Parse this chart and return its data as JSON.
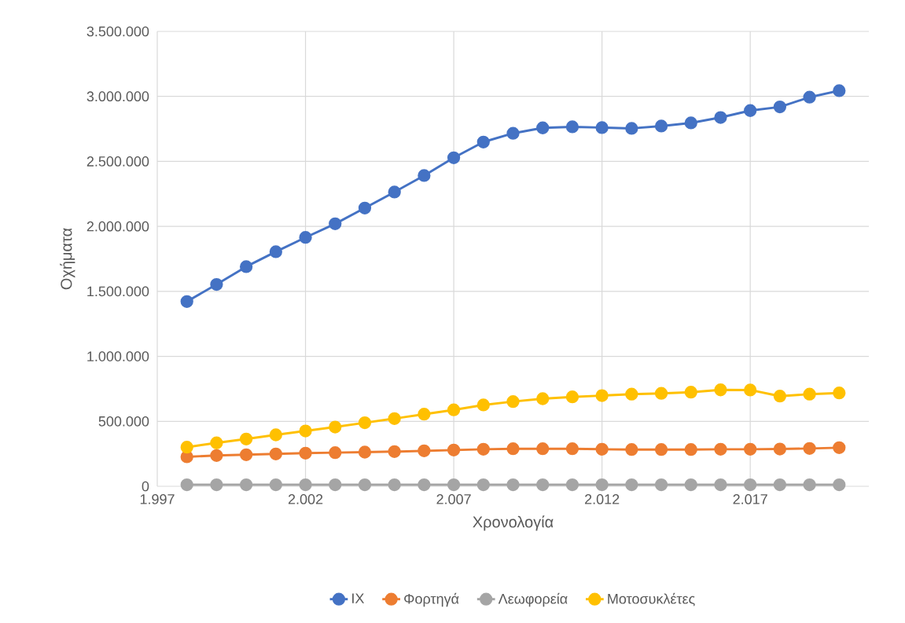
{
  "chart_data": {
    "type": "line",
    "xlabel": "Χρονολογία",
    "ylabel": "Οχήματα",
    "x": [
      1998,
      1999,
      2000,
      2001,
      2002,
      2003,
      2004,
      2005,
      2006,
      2007,
      2008,
      2009,
      2010,
      2011,
      2012,
      2013,
      2014,
      2015,
      2016,
      2017,
      2018,
      2019,
      2020
    ],
    "series": [
      {
        "name": "IX",
        "color": "#4472c4",
        "values": [
          1422000,
          1553000,
          1690000,
          1805000,
          1915000,
          2020000,
          2141000,
          2264000,
          2391000,
          2528000,
          2649000,
          2716000,
          2758000,
          2766000,
          2760000,
          2754000,
          2772000,
          2796000,
          2838000,
          2891000,
          2919000,
          2994000,
          3044000
        ]
      },
      {
        "name": "Φορτηγά",
        "color": "#ed7d31",
        "values": [
          227000,
          237000,
          243000,
          249000,
          255000,
          259000,
          263000,
          267000,
          273000,
          279000,
          285000,
          289000,
          289000,
          289000,
          285000,
          283000,
          283000,
          283000,
          285000,
          285000,
          287000,
          291000,
          297000
        ]
      },
      {
        "name": "Λεωφορεία",
        "color": "#a5a5a5",
        "values": [
          12000,
          12000,
          12000,
          12000,
          12000,
          12000,
          12000,
          12000,
          12000,
          12000,
          12000,
          12000,
          12000,
          12000,
          12000,
          12000,
          12000,
          12000,
          12000,
          12000,
          12000,
          12000,
          12000
        ]
      },
      {
        "name": "Μοτοσυκλέτες",
        "color": "#ffc000",
        "values": [
          301000,
          334000,
          364000,
          396000,
          426000,
          456000,
          489000,
          521000,
          555000,
          588000,
          626000,
          652000,
          674000,
          688000,
          698000,
          709000,
          715000,
          724000,
          742000,
          741000,
          694000,
          709000,
          718000
        ]
      }
    ],
    "xlim": [
      1997,
      2021
    ],
    "xticks": [
      {
        "value": 1997,
        "label": "1.997"
      },
      {
        "value": 2002,
        "label": "2.002"
      },
      {
        "value": 2007,
        "label": "2.007"
      },
      {
        "value": 2012,
        "label": "2.012"
      },
      {
        "value": 2017,
        "label": "2.017"
      }
    ],
    "ylim": [
      0,
      3500000
    ],
    "yticks": [
      0,
      {
        "value": 500000,
        "label": "500.000"
      },
      {
        "value": 1000000,
        "label": "1.000.000"
      },
      {
        "value": 1500000,
        "label": "1.500.000"
      },
      {
        "value": 2000000,
        "label": "2.000.000"
      },
      {
        "value": 2500000,
        "label": "2.500.000"
      },
      {
        "value": 3000000,
        "label": "3.000.000"
      },
      {
        "value": 3500000,
        "label": "3.500.000"
      }
    ],
    "grid": true,
    "legend": "bottom",
    "marker": "circle",
    "line_style": "solid"
  }
}
